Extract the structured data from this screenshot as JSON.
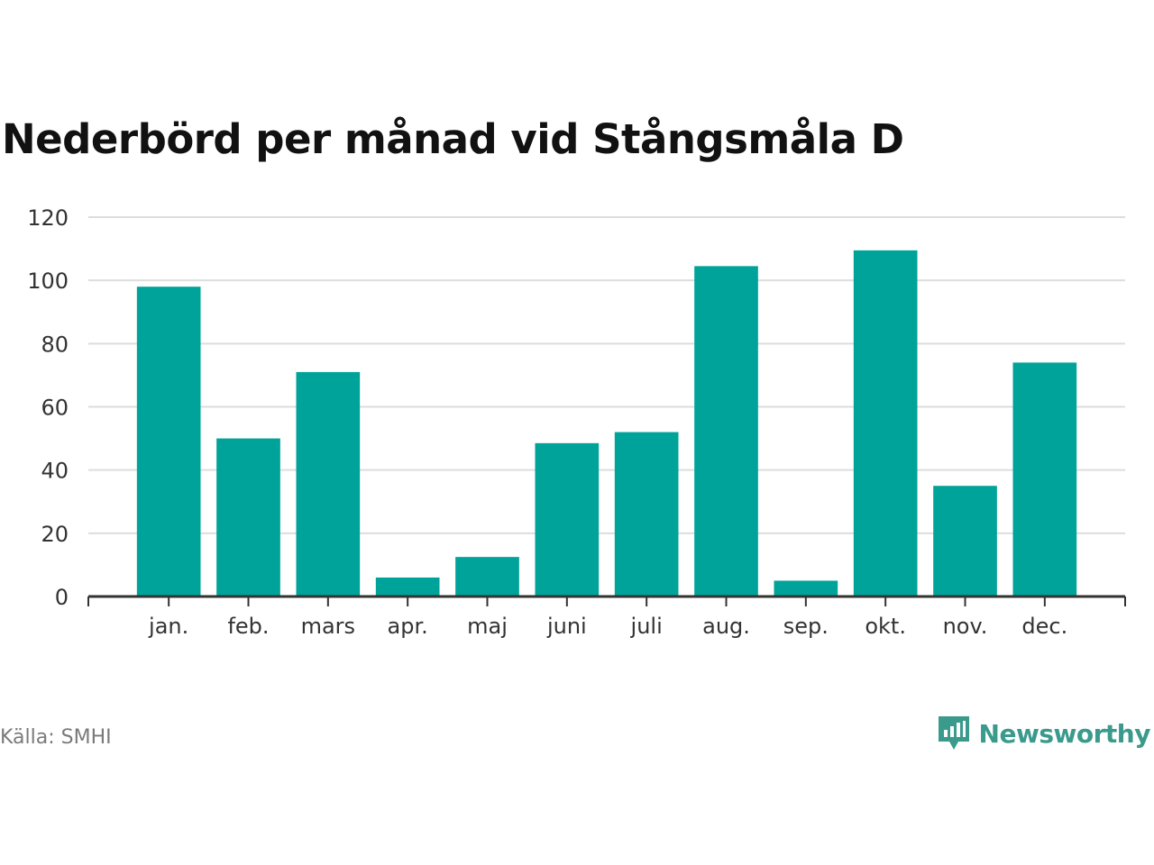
{
  "chart_data": {
    "type": "bar",
    "title": "Nederbörd per månad vid Stångsmåla D",
    "categories": [
      "jan.",
      "feb.",
      "mars",
      "apr.",
      "maj",
      "juni",
      "juli",
      "aug.",
      "sep.",
      "okt.",
      "nov.",
      "dec."
    ],
    "values": [
      98,
      50,
      71,
      6,
      12.5,
      48.5,
      52,
      104.5,
      5,
      109.5,
      35,
      74
    ],
    "ylim": [
      0,
      120
    ],
    "yticks": [
      0,
      20,
      40,
      60,
      80,
      100,
      120
    ],
    "grid": true,
    "legend": "none",
    "bar_color": "#00a39a"
  },
  "source_text": "Källa: SMHI",
  "brand": {
    "name": "Newsworthy",
    "color": "#3a9a8c",
    "icon": "newsworthy-chart-bubble-icon"
  }
}
